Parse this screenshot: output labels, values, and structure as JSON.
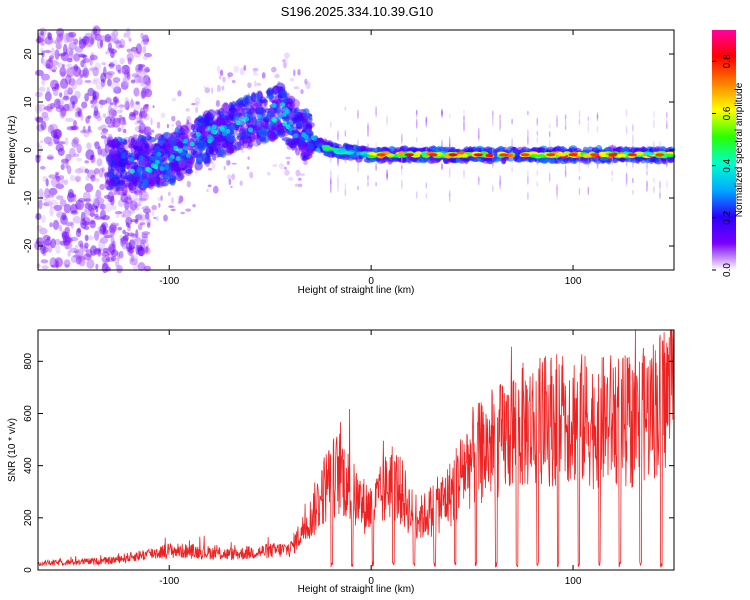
{
  "title": "S196.2025.334.10.39.G10",
  "chart_data": [
    {
      "type": "heatmap",
      "xlabel": "Height of straight line (km)",
      "ylabel": "Frequency (Hz)",
      "xlim": [
        -165,
        150
      ],
      "ylim": [
        -25,
        25
      ],
      "xticks": [
        -100,
        0,
        100
      ],
      "yticks": [
        -20,
        -10,
        0,
        10,
        20
      ],
      "colorbar": {
        "label": "Normalized spectral amplitude",
        "range": [
          0.0,
          0.92
        ],
        "ticks": [
          "0.0",
          "0.2",
          "0.4",
          "0.6",
          "0.8"
        ],
        "colors": [
          "#ffffff",
          "#7b00ff",
          "#2a00ff",
          "#00aaff",
          "#00ffcc",
          "#2aff00",
          "#ffff00",
          "#ff8000",
          "#ff0000",
          "#ff00a0"
        ]
      },
      "ridge": {
        "description_points_km_hz": [
          [
            -125,
            -3
          ],
          [
            -100,
            -2
          ],
          [
            -75,
            4
          ],
          [
            -45,
            8
          ],
          [
            -30,
            2
          ],
          [
            -20,
            0
          ],
          [
            0,
            -1
          ],
          [
            50,
            -1
          ],
          [
            100,
            -1
          ],
          [
            150,
            -1
          ]
        ],
        "peak_amplitude": 0.85
      },
      "colors": {
        "low": "#7b00ff",
        "mid": "#00ffcc",
        "high": "#ff0000"
      }
    },
    {
      "type": "line",
      "xlabel": "Height of straight line (km)",
      "ylabel": "SNR (10 * v/v)",
      "xlim": [
        -165,
        150
      ],
      "ylim": [
        0,
        920
      ],
      "xticks": [
        -100,
        0,
        100
      ],
      "yticks": [
        0,
        200,
        400,
        600,
        800
      ],
      "series": [
        {
          "name": "SNR",
          "color": "#ee2222",
          "x": [
            -165,
            -150,
            -130,
            -115,
            -100,
            -85,
            -70,
            -55,
            -40,
            -30,
            -22,
            -15,
            -10,
            -5,
            0,
            5,
            10,
            15,
            20,
            25,
            30,
            35,
            40,
            45,
            50,
            55,
            60,
            65,
            70,
            80,
            90,
            100,
            110,
            120,
            130,
            140,
            148
          ],
          "y": [
            25,
            30,
            35,
            55,
            75,
            70,
            60,
            70,
            80,
            200,
            330,
            380,
            300,
            250,
            240,
            280,
            350,
            300,
            220,
            200,
            230,
            260,
            300,
            380,
            430,
            450,
            480,
            500,
            540,
            560,
            580,
            590,
            560,
            580,
            560,
            620,
            680
          ]
        }
      ]
    }
  ]
}
